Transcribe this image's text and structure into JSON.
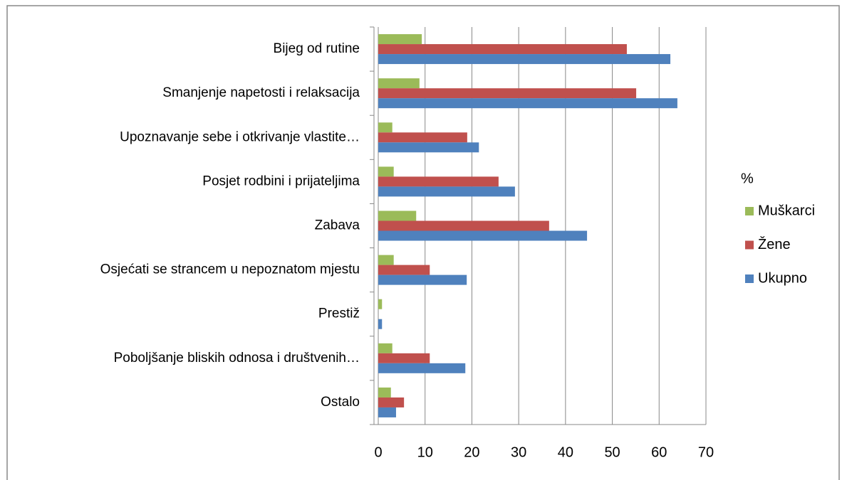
{
  "chart_data": {
    "type": "barh",
    "categories": [
      "Bijeg od rutine",
      "Smanjenje napetosti i relaksacija",
      "Upoznavanje sebe i otkrivanje vlastite…",
      "Posjet rodbini i prijateljima",
      "Zabava",
      "Osjećati se strancem u nepoznatom mjestu",
      "Prestiž",
      "Poboljšanje bliskih odnosa i društvenih…",
      "Ostalo"
    ],
    "series": [
      {
        "name": "Muškarci",
        "color": "#9bbb59",
        "values": [
          9.3,
          8.8,
          3.0,
          3.3,
          8.1,
          3.3,
          0.8,
          3.0,
          2.7
        ]
      },
      {
        "name": "Žene",
        "color": "#c0504d",
        "values": [
          53.1,
          55.1,
          19.0,
          25.7,
          36.5,
          11.0,
          0,
          11.0,
          5.5
        ]
      },
      {
        "name": "Ukupno",
        "color": "#4f81bd",
        "values": [
          62.4,
          63.9,
          21.5,
          29.2,
          44.6,
          18.9,
          0.8,
          18.6,
          3.8
        ]
      }
    ],
    "legend_title": "%",
    "xlim": [
      0,
      70
    ],
    "xticks": [
      0,
      10,
      20,
      30,
      40,
      50,
      60,
      70
    ],
    "grid": true,
    "legend": "right"
  }
}
